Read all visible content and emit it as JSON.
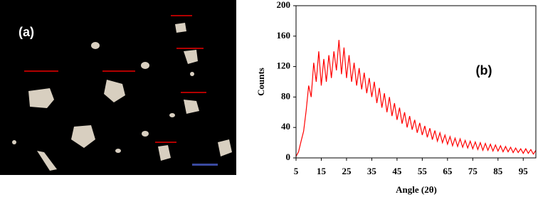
{
  "image_panel": {
    "label": "(a)"
  },
  "chart_data": {
    "type": "line",
    "panel_label": "(b)",
    "xlabel": "Angle (2θ)",
    "ylabel": "Counts",
    "xlim": [
      5,
      100
    ],
    "xticks": [
      5,
      15,
      25,
      35,
      45,
      55,
      65,
      75,
      85,
      95
    ],
    "ylim": [
      0,
      200
    ],
    "yticks": [
      0,
      40,
      80,
      120,
      160,
      200
    ],
    "grid": false,
    "x": [
      5,
      6,
      7,
      8,
      9,
      10,
      11,
      12,
      13,
      14,
      15,
      16,
      17,
      18,
      19,
      20,
      21,
      22,
      23,
      24,
      25,
      26,
      27,
      28,
      29,
      30,
      31,
      32,
      33,
      34,
      35,
      36,
      37,
      38,
      39,
      40,
      41,
      42,
      43,
      44,
      45,
      46,
      47,
      48,
      49,
      50,
      51,
      52,
      53,
      54,
      55,
      56,
      57,
      58,
      59,
      60,
      61,
      62,
      63,
      64,
      65,
      66,
      67,
      68,
      69,
      70,
      71,
      72,
      73,
      74,
      75,
      76,
      77,
      78,
      79,
      80,
      81,
      82,
      83,
      84,
      85,
      86,
      87,
      88,
      89,
      90,
      91,
      92,
      93,
      94,
      95,
      96,
      97,
      98,
      99,
      100
    ],
    "series": [
      {
        "color": "#ff0000",
        "values": [
          2,
          8,
          22,
          35,
          62,
          95,
          80,
          125,
          100,
          140,
          95,
          130,
          100,
          135,
          105,
          140,
          115,
          155,
          110,
          145,
          105,
          135,
          100,
          125,
          95,
          118,
          90,
          112,
          85,
          105,
          80,
          100,
          72,
          92,
          66,
          85,
          60,
          80,
          55,
          72,
          50,
          66,
          45,
          60,
          40,
          55,
          37,
          50,
          33,
          46,
          30,
          42,
          27,
          39,
          24,
          36,
          22,
          33,
          20,
          30,
          18,
          28,
          16,
          26,
          15,
          25,
          14,
          23,
          13,
          22,
          12,
          21,
          11,
          20,
          10,
          19,
          10,
          18,
          9,
          17,
          9,
          16,
          8,
          15,
          8,
          14,
          7,
          13,
          7,
          12,
          6,
          12,
          6,
          11,
          5,
          10
        ]
      }
    ]
  }
}
